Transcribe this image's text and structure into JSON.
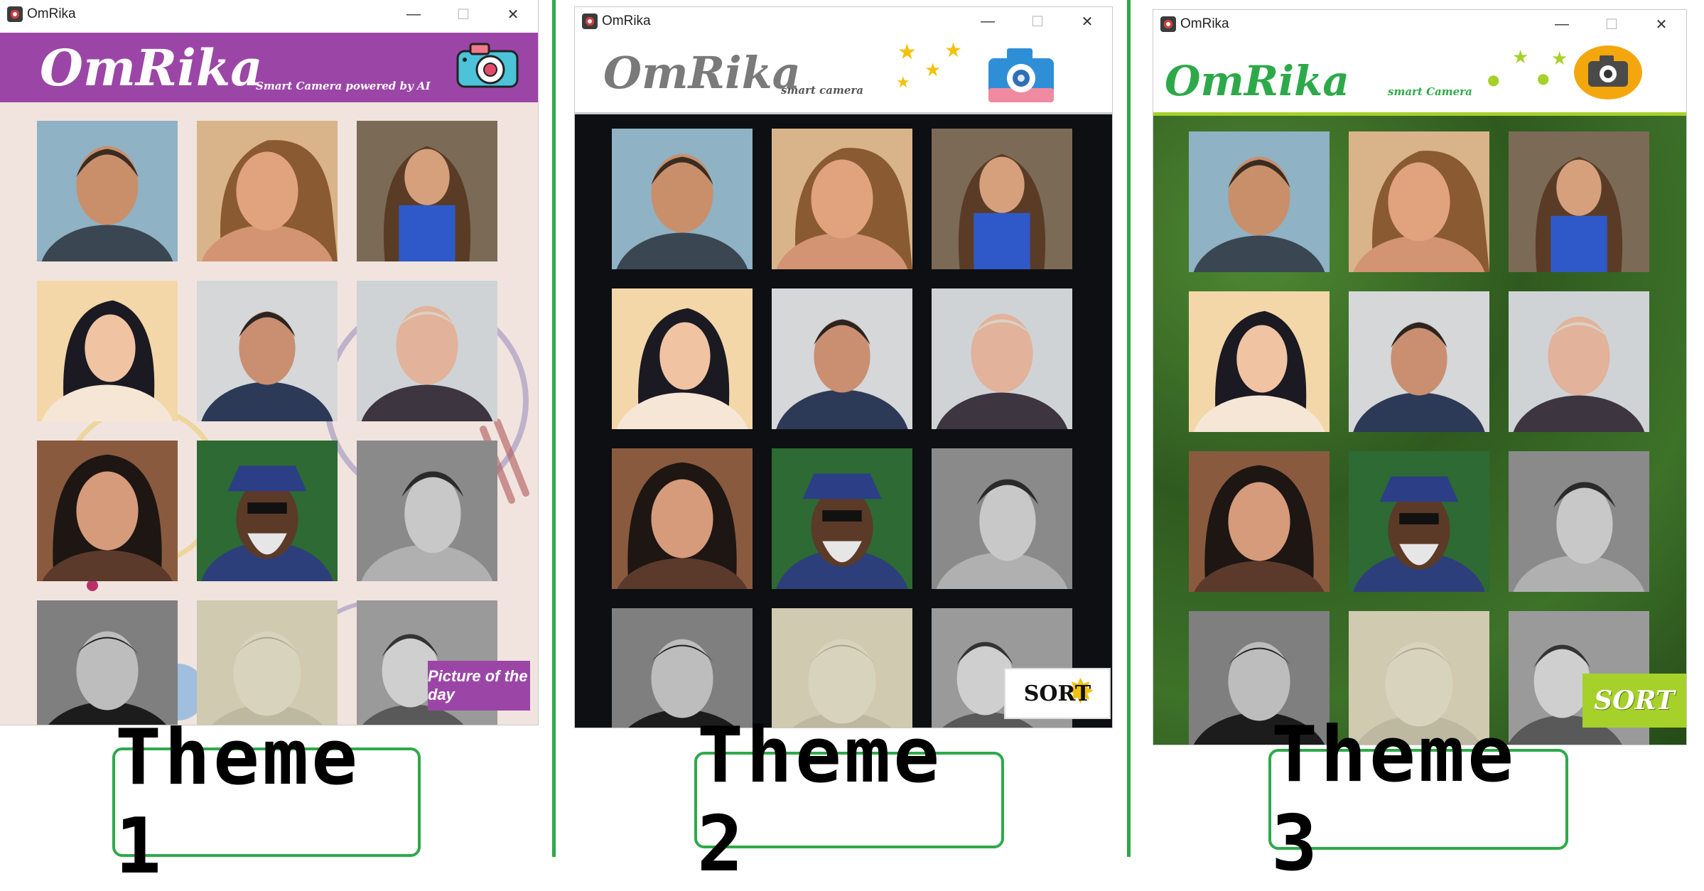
{
  "app": {
    "window_title": "OmRika",
    "logo_text": "OmRika"
  },
  "window_controls": {
    "minimize": "—",
    "maximize": "☐",
    "close": "✕"
  },
  "themes": [
    {
      "tagline": "Smart Camera powered by AI",
      "floating_button": "Picture of the day",
      "caption": "Theme 1",
      "colors": {
        "header": "#9b46a7",
        "background": "#f1e4df",
        "logo": "#ffffff",
        "button": "#9b46a7"
      }
    },
    {
      "tagline": "smart camera",
      "floating_button": "SORT",
      "caption": "Theme 2",
      "colors": {
        "header": "#ffffff",
        "background": "#0d0f12",
        "logo": "#7a7a7a",
        "button": "#ffffff"
      }
    },
    {
      "tagline": "smart Camera",
      "floating_button": "SORT",
      "caption": "Theme 3",
      "colors": {
        "header": "#ffffff",
        "background": "#2f5a1f",
        "logo": "#2ea94a",
        "button": "#a6d02a"
      }
    }
  ],
  "photos": [
    {
      "name": "man-smiling-portrait",
      "bg": "#8fb2c4",
      "skin": "#c98f6b",
      "hair": "#3b2c22",
      "cloth": "#3a4651"
    },
    {
      "name": "woman-brown-hair",
      "bg": "#d9b48a",
      "skin": "#e0a37e",
      "hair": "#8a5a32",
      "cloth": "#d29472"
    },
    {
      "name": "woman-blue-dress",
      "bg": "#7b6a55",
      "skin": "#d6a07c",
      "hair": "#5a3c26",
      "cloth": "#2f59c8"
    },
    {
      "name": "woman-dark-hair",
      "bg": "#f3d7a8",
      "skin": "#f0c3a2",
      "hair": "#1b1a22",
      "cloth": "#f6e6d6"
    },
    {
      "name": "man-patterned-shirt",
      "bg": "#d5d7d9",
      "skin": "#c98f70",
      "hair": "#2b2420",
      "cloth": "#2d3a57"
    },
    {
      "name": "elderly-man",
      "bg": "#cfd3d6",
      "skin": "#e2b29a",
      "hair": "#d9d2c4",
      "cloth": "#3d3540"
    },
    {
      "name": "woman-dark-curly-hair",
      "bg": "#8a5a3f",
      "skin": "#d59b7b",
      "hair": "#1d1613",
      "cloth": "#5b3a2c"
    },
    {
      "name": "man-blue-hat-sunglasses",
      "bg": "#2d6a34",
      "skin": "#5c3a28",
      "hair": "#e6e6e6",
      "cloth": "#2d3f7a"
    },
    {
      "name": "man-bw-profile",
      "bg": "#8a8a8a",
      "skin": "#c8c8c8",
      "hair": "#2a2a2a",
      "cloth": "#b0b0b0"
    },
    {
      "name": "man-bw-suit",
      "bg": "#7f7f7f",
      "skin": "#bdbdbd",
      "hair": "#1f1f1f",
      "cloth": "#1c1c1c"
    },
    {
      "name": "man-sepia-portrait",
      "bg": "#cfcab0",
      "skin": "#d8d3bd",
      "hair": "#a9a48c",
      "cloth": "#bdb8a0"
    },
    {
      "name": "man-bw-crowd",
      "bg": "#9a9a9a",
      "skin": "#cfcfcf",
      "hair": "#333333",
      "cloth": "#595959"
    }
  ]
}
